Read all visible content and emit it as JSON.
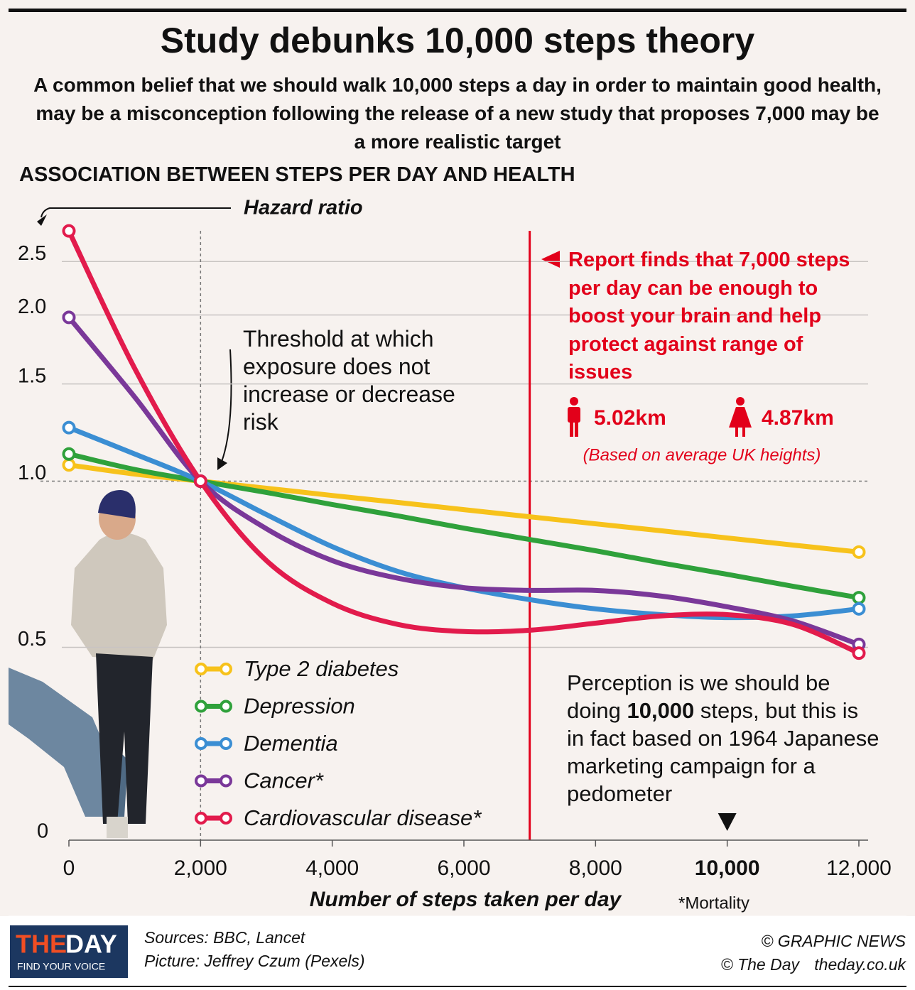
{
  "chart_data": {
    "type": "line",
    "title": "Study debunks 10,000 steps theory",
    "subtitle": "A common belief that we should walk 10,000 steps a day in order to maintain good health, may be a misconception following the release of a new study that proposes 7,000 may be a more realistic target",
    "heading": "ASSOCIATION BETWEEN STEPS PER DAY AND HEALTH",
    "y_label": "Hazard ratio",
    "x_label": "Number of steps taken per day",
    "footnote": "*Mortality",
    "y_scale": "log",
    "y_origin_label": "0",
    "x": [
      0,
      1000,
      2000,
      3000,
      4000,
      5000,
      6000,
      7000,
      8000,
      9000,
      10000,
      11000,
      12000
    ],
    "xlim": [
      0,
      12000
    ],
    "xticks": [
      {
        "value": 0,
        "label": "0"
      },
      {
        "value": 2000,
        "label": "2,000"
      },
      {
        "value": 4000,
        "label": "4,000"
      },
      {
        "value": 6000,
        "label": "6,000"
      },
      {
        "value": 8000,
        "label": "8,000"
      },
      {
        "value": 10000,
        "label": "10,000"
      },
      {
        "value": 12000,
        "label": "12,000"
      }
    ],
    "emphasized_xtick": 10000,
    "ylim": [
      0.227,
      3.06
    ],
    "yticks": [
      0.5,
      {
        "value": 1,
        "label": "1.0"
      },
      1.5,
      {
        "value": 2,
        "label": "2.0"
      },
      2.5
    ],
    "grid": true,
    "threshold": {
      "x": 2000,
      "y": 1,
      "label": "Threshold at which exposure does not increase or decrease risk"
    },
    "highlight_x": 7000,
    "series": [
      {
        "name": "Type 2 diabetes",
        "color": "#f7c21b",
        "values": [
          1.07,
          1.03,
          1.0,
          0.971,
          0.942,
          0.915,
          0.888,
          0.862,
          0.837,
          0.813,
          0.789,
          0.766,
          0.744
        ]
      },
      {
        "name": "Depression",
        "color": "#2fa13b",
        "values": [
          1.12,
          1.05,
          1.0,
          0.954,
          0.907,
          0.865,
          0.822,
          0.784,
          0.748,
          0.711,
          0.678,
          0.645,
          0.615
        ]
      },
      {
        "name": "Dementia",
        "color": "#3b8ed3",
        "values": [
          1.25,
          1.12,
          1.0,
          0.87,
          0.761,
          0.686,
          0.641,
          0.61,
          0.587,
          0.573,
          0.566,
          0.57,
          0.587
        ]
      },
      {
        "name": "Cancer*",
        "color": "#7a3899",
        "values": [
          1.98,
          1.42,
          1.0,
          0.82,
          0.718,
          0.667,
          0.641,
          0.634,
          0.634,
          0.619,
          0.592,
          0.558,
          0.506
        ]
      },
      {
        "name": "Cardiovascular disease*",
        "color": "#e21b4c",
        "values": [
          2.84,
          1.6,
          1.0,
          0.718,
          0.601,
          0.55,
          0.534,
          0.537,
          0.553,
          0.57,
          0.573,
          0.55,
          0.488
        ]
      }
    ],
    "report": {
      "text": "Report finds that 7,000 steps per day can be enough to boost your brain and help protect against range of issues",
      "male": "5.02km",
      "female": "4.87km",
      "note": "(Based on average UK heights)"
    },
    "perception": [
      "Perception is we should be doing ",
      "10,000",
      " steps, but this is in fact based on 1964 Japanese marketing campaign for a pedometer"
    ]
  },
  "footer": {
    "logo_the": "THE",
    "logo_day": "DAY",
    "logo_tag": "FIND YOUR VOICE",
    "sources": "Sources: BBC, Lancet",
    "picture": "Picture: Jeffrey Czum (Pexels)",
    "credit": "© GRAPHIC NEWS",
    "credit2": "© The Day",
    "site": "theday.co.uk"
  }
}
